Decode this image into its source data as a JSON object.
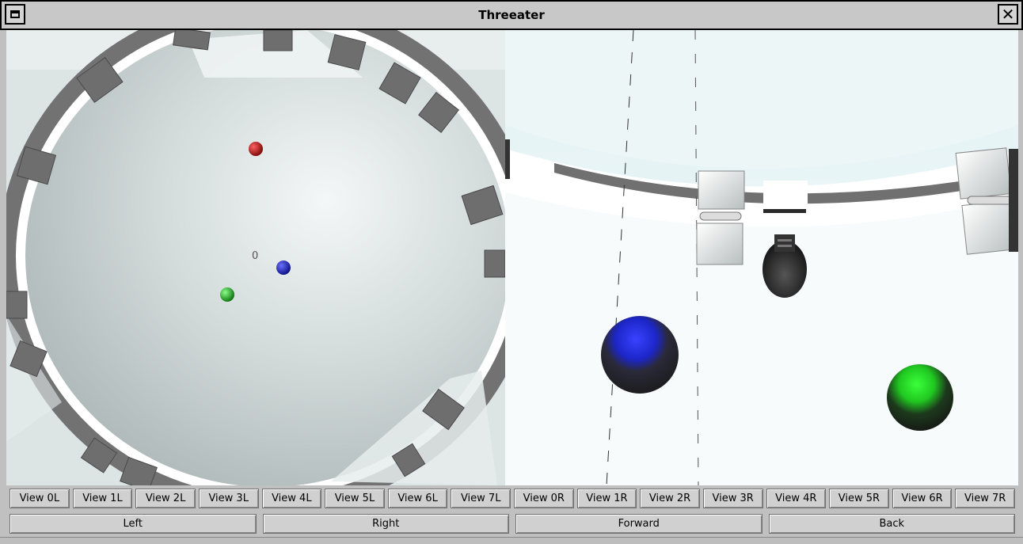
{
  "window": {
    "title": "Threeater",
    "close_glyph": "✕"
  },
  "scene": {
    "left_label": "0",
    "colors": {
      "red": "#e01818",
      "blue": "#2a30e0",
      "green": "#28d028",
      "wall": "#777777",
      "floor": "#cfd7d7"
    }
  },
  "view_buttons": [
    "View 0L",
    "View 1L",
    "View 2L",
    "View 3L",
    "View 4L",
    "View 5L",
    "View 6L",
    "View 7L",
    "View 0R",
    "View 1R",
    "View 2R",
    "View 3R",
    "View 4R",
    "View 5R",
    "View 6R",
    "View 7R"
  ],
  "nav_buttons": [
    "Left",
    "Right",
    "Forward",
    "Back"
  ]
}
